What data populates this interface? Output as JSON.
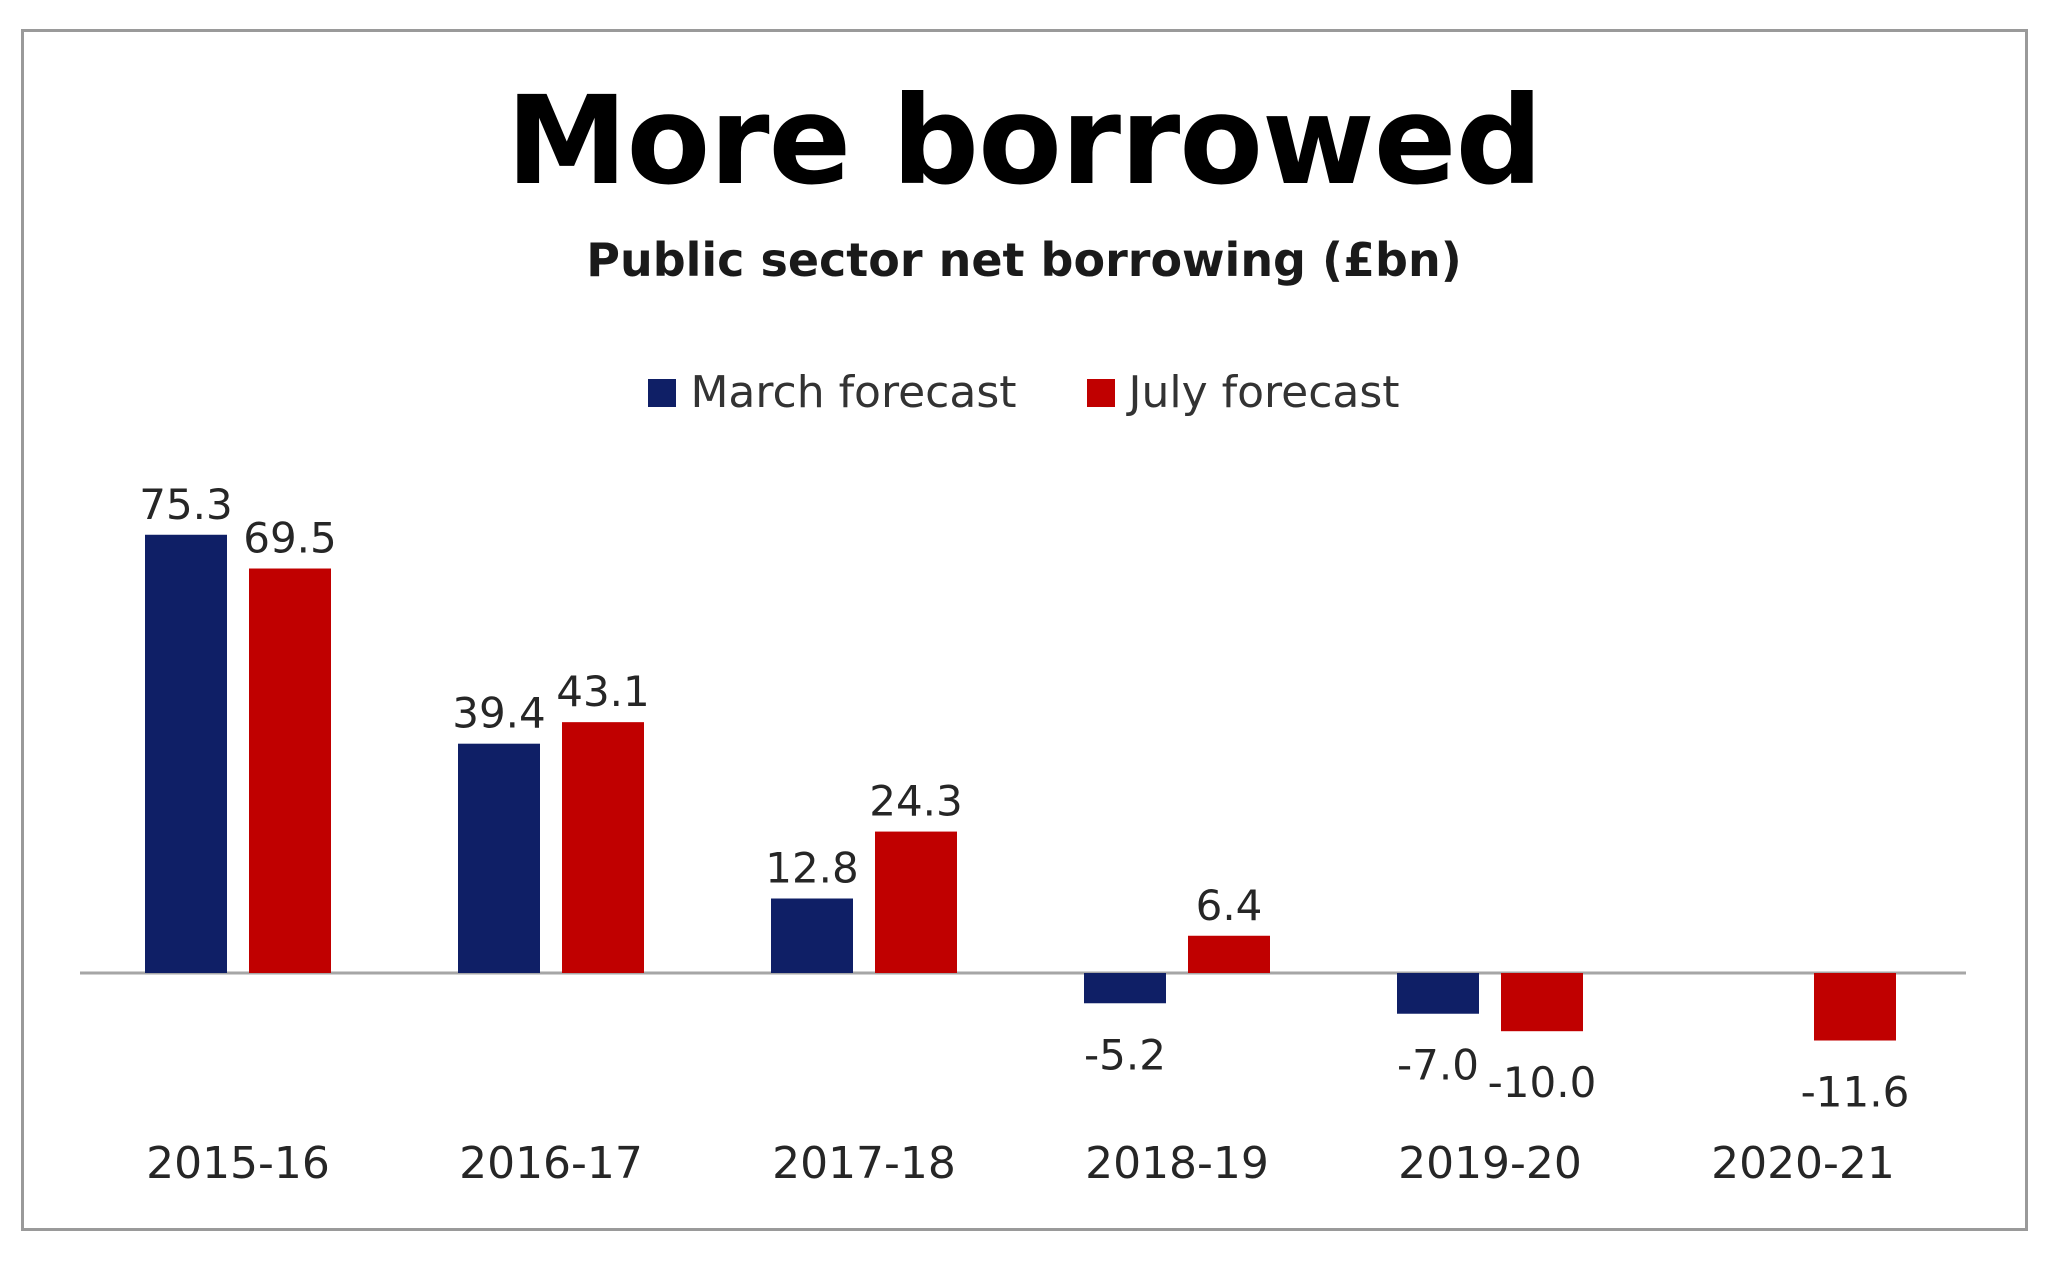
{
  "chart_data": {
    "type": "bar",
    "title": "More borrowed",
    "subtitle": "Public sector net borrowing (£bn)",
    "categories": [
      "2015-16",
      "2016-17",
      "2017-18",
      "2018-19",
      "2019-20",
      "2020-21"
    ],
    "series": [
      {
        "name": "March forecast",
        "color": "#0f1f66",
        "values": [
          75.3,
          39.4,
          12.8,
          -5.2,
          -7.0,
          null
        ],
        "labels": [
          "75.3",
          "39.4",
          "12.8",
          "-5.2",
          "-7.0",
          ""
        ]
      },
      {
        "name": "July forecast",
        "color": "#c00000",
        "values": [
          69.5,
          43.1,
          24.3,
          6.4,
          -10.0,
          -11.6
        ],
        "labels": [
          "69.5",
          "43.1",
          "24.3",
          "6.4",
          "-10.0",
          "-11.6"
        ]
      }
    ],
    "xlabel": "",
    "ylabel": "",
    "grid": false,
    "legend_position": "top"
  }
}
